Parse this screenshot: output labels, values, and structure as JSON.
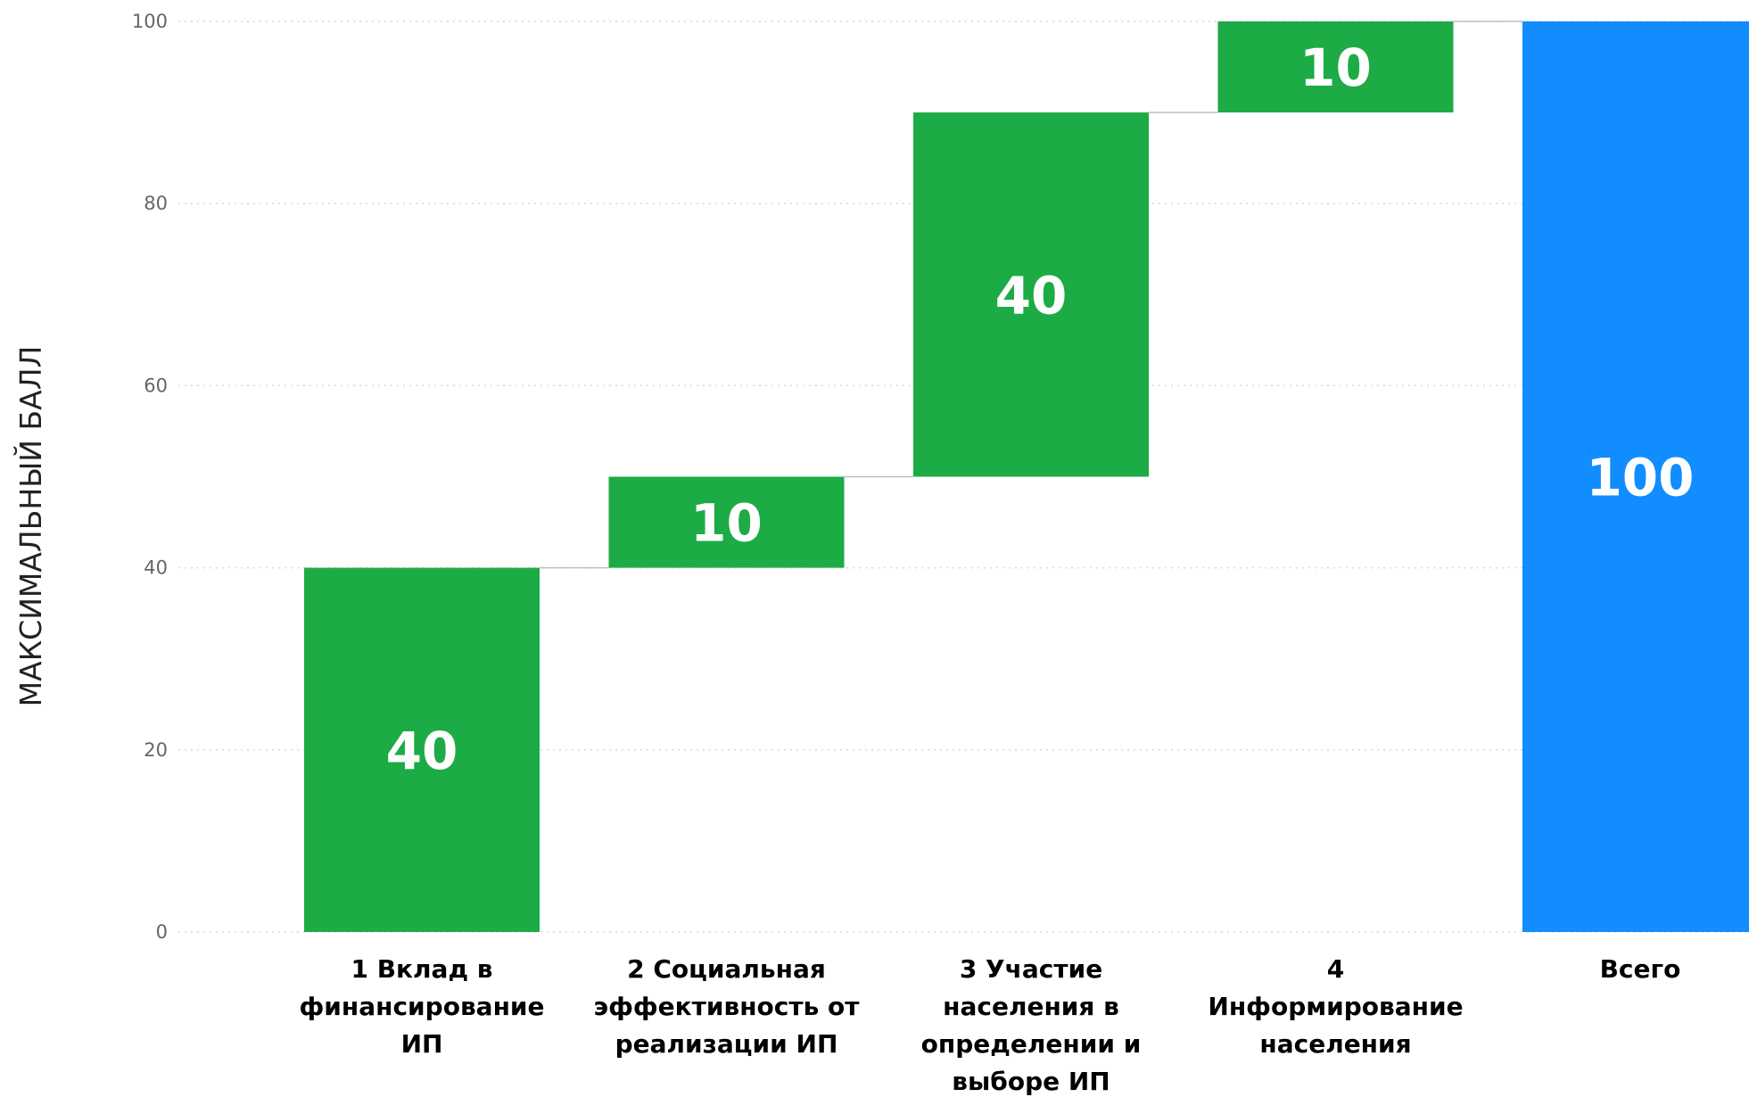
{
  "chart_data": {
    "type": "bar",
    "subtype": "waterfall",
    "ylabel": "МАКСИМАЛЬНЫЙ БАЛЛ",
    "ylim": [
      0,
      100
    ],
    "yticks": [
      0,
      20,
      40,
      60,
      80,
      100
    ],
    "grid": true,
    "categories": [
      [
        "1 Вклад в",
        "финансирование",
        "ИП"
      ],
      [
        "2 Социальная",
        "эффективность от",
        "реализации ИП"
      ],
      [
        "3 Участие",
        "населения в",
        "определении и",
        "выборе ИП"
      ],
      [
        "4",
        "Информирование",
        "населения"
      ],
      [
        "Всего"
      ]
    ],
    "steps": [
      {
        "start": 0,
        "end": 40,
        "value": 40,
        "label": "40",
        "is_total": false
      },
      {
        "start": 40,
        "end": 50,
        "value": 10,
        "label": "10",
        "is_total": false
      },
      {
        "start": 50,
        "end": 90,
        "value": 40,
        "label": "40",
        "is_total": false
      },
      {
        "start": 90,
        "end": 100,
        "value": 10,
        "label": "10",
        "is_total": false
      },
      {
        "start": 0,
        "end": 100,
        "value": 100,
        "label": "100",
        "is_total": true
      }
    ],
    "colors": {
      "increase": "#1dab45",
      "total": "#118dff",
      "grid": "#d9d9d9",
      "connector": "#bfbfbf"
    }
  }
}
